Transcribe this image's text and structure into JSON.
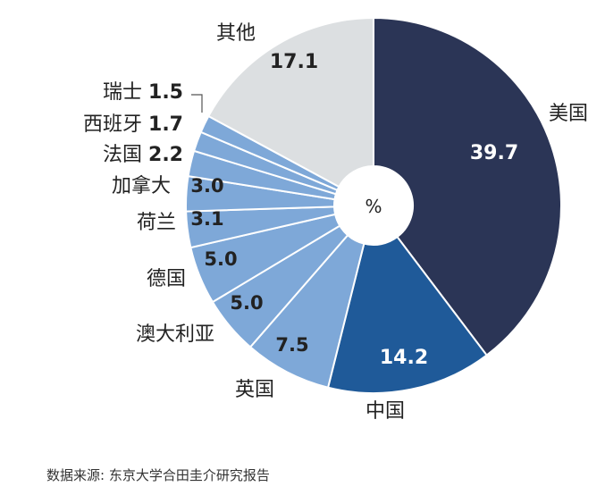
{
  "chart_data": {
    "type": "pie",
    "center_label": "%",
    "slices": [
      {
        "label": "美国",
        "value": 39.7,
        "value_label": "39.7",
        "color": "#2b3556"
      },
      {
        "label": "中国",
        "value": 14.2,
        "value_label": "14.2",
        "color": "#1f5a99"
      },
      {
        "label": "英国",
        "value": 7.5,
        "value_label": "7.5",
        "color": "#7ea8d8"
      },
      {
        "label": "澳大利亚",
        "value": 5.0,
        "value_label": "5.0",
        "color": "#7ea8d8"
      },
      {
        "label": "德国",
        "value": 5.0,
        "value_label": "5.0",
        "color": "#7ea8d8"
      },
      {
        "label": "荷兰",
        "value": 3.1,
        "value_label": "3.1",
        "color": "#7ea8d8"
      },
      {
        "label": "加拿大",
        "value": 3.0,
        "value_label": "3.0",
        "color": "#7ea8d8"
      },
      {
        "label": "法国",
        "value": 2.2,
        "value_label": "2.2",
        "color": "#7ea8d8"
      },
      {
        "label": "西班牙",
        "value": 1.7,
        "value_label": "1.7",
        "color": "#7ea8d8"
      },
      {
        "label": "瑞士",
        "value": 1.5,
        "value_label": "1.5",
        "color": "#7ea8d8"
      },
      {
        "label": "其他",
        "value": 17.1,
        "value_label": "17.1",
        "color": "#dcdfe1"
      }
    ]
  },
  "source": "数据来源: 东京大学合田圭介研究报告"
}
